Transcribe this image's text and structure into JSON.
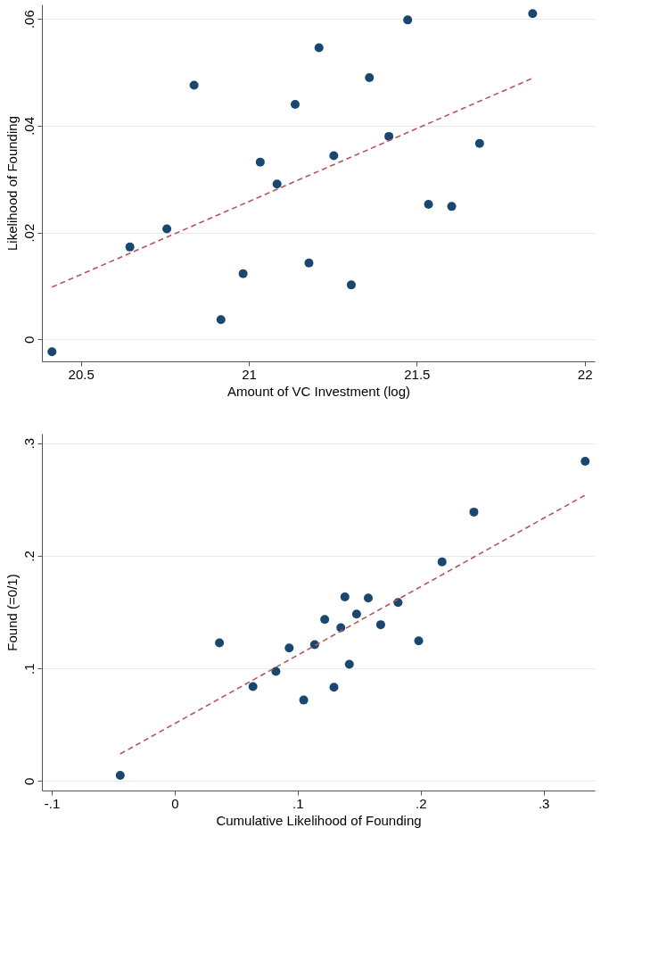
{
  "chart_data": [
    {
      "type": "scatter",
      "xlabel": "Amount of VC Investment (log)",
      "ylabel": "Likelihood of Founding",
      "grid": "y",
      "xlim": [
        20.384,
        22.03
      ],
      "ylim": [
        -0.0041,
        0.0627
      ],
      "xticks": [
        20.5,
        21,
        21.5,
        22
      ],
      "yticks": [
        0,
        {
          "value": 0.02,
          "label": ".02"
        },
        {
          "value": 0.04,
          "label": ".04"
        },
        {
          "value": 0.06,
          "label": ".06"
        }
      ],
      "series": [
        {
          "color": "#1a476f",
          "marker": "circle",
          "x": [
            20.414,
            20.646,
            20.756,
            20.837,
            20.917,
            20.983,
            21.034,
            21.084,
            21.138,
            21.179,
            21.209,
            21.253,
            21.305,
            21.359,
            21.417,
            21.473,
            21.535,
            21.604,
            21.687,
            21.845
          ],
          "values": [
            -0.0023,
            0.0173,
            0.0207,
            0.0476,
            0.0037,
            0.0123,
            0.0332,
            0.0291,
            0.044,
            0.0143,
            0.0546,
            0.0344,
            0.0102,
            0.049,
            0.038,
            0.0598,
            0.0253,
            0.0249,
            0.0367,
            0.061
          ]
        },
        {
          "type": "line",
          "color": "#b5565a",
          "line_style": "dashed",
          "x": [
            20.414,
            21.845
          ],
          "values": [
            0.0098,
            0.0489
          ]
        }
      ]
    },
    {
      "type": "scatter",
      "xlabel": "Cumulative Likelihood of Founding",
      "ylabel": "Found (=0/1)",
      "grid": "y",
      "xlim": [
        -0.108,
        0.3416
      ],
      "ylim": [
        -0.0084,
        0.3084
      ],
      "xticks": [
        {
          "value": -0.1,
          "label": "-.1"
        },
        0,
        {
          "value": 0.1,
          "label": ".1"
        },
        {
          "value": 0.2,
          "label": ".2"
        },
        {
          "value": 0.3,
          "label": ".3"
        }
      ],
      "yticks": [
        0,
        {
          "value": 0.1,
          "label": ".1"
        },
        {
          "value": 0.2,
          "label": ".2"
        },
        {
          "value": 0.3,
          "label": ".3"
        }
      ],
      "series": [
        {
          "color": "#1a476f",
          "marker": "circle",
          "x": [
            -0.0443,
            0.0364,
            0.0636,
            0.0823,
            0.0931,
            0.1049,
            0.1138,
            0.122,
            0.1295,
            0.1351,
            0.1384,
            0.142,
            0.1479,
            0.1574,
            0.1675,
            0.1816,
            0.1984,
            0.2174,
            0.2433,
            0.3338
          ],
          "values": [
            0.005,
            0.1227,
            0.0839,
            0.0973,
            0.1181,
            0.0719,
            0.1211,
            0.1435,
            0.0833,
            0.1361,
            0.1635,
            0.1037,
            0.1482,
            0.1625,
            0.1388,
            0.1585,
            0.1244,
            0.1946,
            0.2388,
            0.2839
          ]
        },
        {
          "type": "line",
          "color": "#b5565a",
          "line_style": "dashed",
          "x": [
            -0.0443,
            0.3338
          ],
          "values": [
            0.0241,
            0.2538
          ]
        }
      ]
    }
  ]
}
